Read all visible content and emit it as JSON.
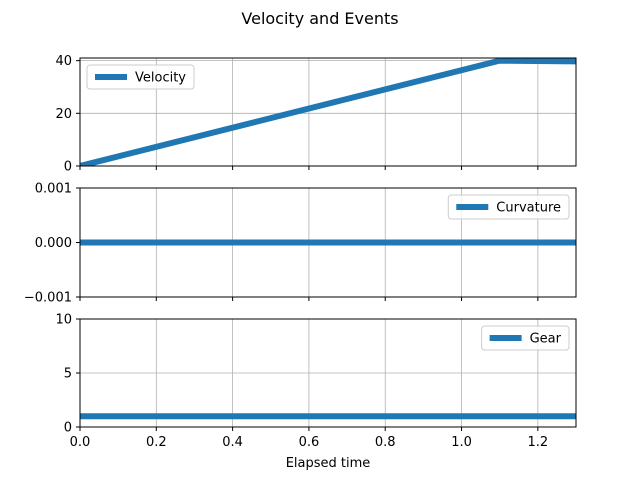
{
  "chart_data": {
    "type": "line",
    "title": "Velocity and Events",
    "xlabel": "Elapsed time",
    "xlim": [
      0.0,
      1.3
    ],
    "xticks": [
      0.0,
      0.2,
      0.4,
      0.6,
      0.8,
      1.0,
      1.2
    ],
    "xtick_labels": [
      "0.0",
      "0.2",
      "0.4",
      "0.6",
      "0.8",
      "1.0",
      "1.2"
    ],
    "grid": true,
    "line_color": "#1f77b4",
    "panels": [
      {
        "ylim": [
          0,
          41
        ],
        "yticks": [
          0,
          20,
          40
        ],
        "ytick_labels": [
          "0",
          "20",
          "40"
        ],
        "legend_position": "top-left",
        "series": [
          {
            "name": "Velocity",
            "x": [
              0.0,
              1.1,
              1.3
            ],
            "y": [
              0,
              40,
              39.7
            ]
          }
        ]
      },
      {
        "ylim": [
          -0.001,
          0.001
        ],
        "yticks": [
          -0.001,
          0.0,
          0.001
        ],
        "ytick_labels": [
          "−0.001",
          "0.000",
          "0.001"
        ],
        "legend_position": "top-right",
        "series": [
          {
            "name": "Curvature",
            "x": [
              0.0,
              1.3
            ],
            "y": [
              0.0,
              0.0
            ]
          }
        ]
      },
      {
        "ylim": [
          0,
          10
        ],
        "yticks": [
          0,
          5,
          10
        ],
        "ytick_labels": [
          "0",
          "5",
          "10"
        ],
        "legend_position": "top-right",
        "series": [
          {
            "name": "Gear",
            "x": [
              0.0,
              1.3
            ],
            "y": [
              1,
              1
            ]
          }
        ]
      }
    ]
  }
}
